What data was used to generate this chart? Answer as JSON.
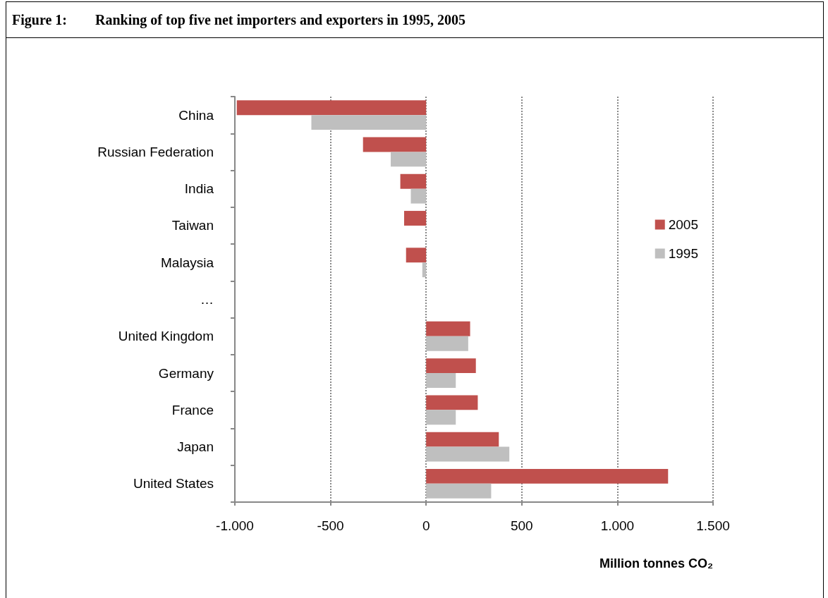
{
  "chart_data": {
    "type": "bar",
    "orientation": "horizontal",
    "title": "Figure 1:  Ranking of top five net importers and exporters in 1995, 2005",
    "xlabel": "Million tonnes CO₂",
    "categories": [
      "China",
      "Russian Federation",
      "India",
      "Taiwan",
      "Malaysia",
      "…",
      "United Kingdom",
      "Germany",
      "France",
      "Japan",
      "United States"
    ],
    "series": [
      {
        "name": "2005",
        "color": "#c0504d",
        "values": [
          -990,
          -330,
          -135,
          -115,
          -105,
          null,
          230,
          260,
          270,
          380,
          1265
        ]
      },
      {
        "name": "1995",
        "color": "#bfbfbf",
        "values": [
          -600,
          -185,
          -80,
          null,
          -20,
          null,
          220,
          155,
          155,
          435,
          340
        ]
      }
    ],
    "xlim": [
      -1000,
      1500
    ],
    "xticks": [
      {
        "value": -1000,
        "label": "-1.000"
      },
      {
        "value": -500,
        "label": "-500"
      },
      0,
      500,
      {
        "value": 1000,
        "label": "1.000"
      },
      {
        "value": 1500,
        "label": "1.500"
      }
    ],
    "grid": "x",
    "legend": "right"
  }
}
